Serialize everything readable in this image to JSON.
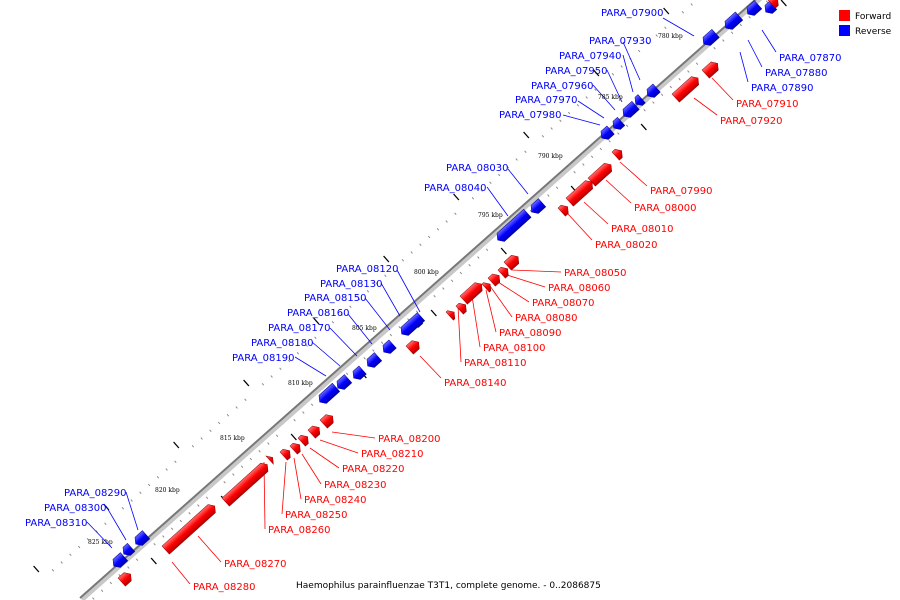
{
  "legend": {
    "forward_label": "Forward",
    "reverse_label": "Reverse",
    "forward_color": "#ff0000",
    "reverse_color": "#0000ff"
  },
  "footer_text": "Haemophilus parainfluenzae T3T1, complete genome. - 0..2086875",
  "kbp_labels": [
    "780 kbp",
    "785 kbp",
    "790 kbp",
    "795 kbp",
    "800 kbp",
    "805 kbp",
    "810 kbp",
    "815 kbp",
    "820 kbp",
    "825 kbp"
  ],
  "genes": {
    "reverse": [
      "PARA_07870",
      "PARA_07880",
      "PARA_07890",
      "PARA_07900",
      "PARA_07930",
      "PARA_07940",
      "PARA_07950",
      "PARA_07960",
      "PARA_07970",
      "PARA_07980",
      "PARA_08030",
      "PARA_08040",
      "PARA_08120",
      "PARA_08130",
      "PARA_08150",
      "PARA_08160",
      "PARA_08170",
      "PARA_08180",
      "PARA_08190",
      "PARA_08290",
      "PARA_08300",
      "PARA_08310"
    ],
    "forward": [
      "PARA_07910",
      "PARA_07920",
      "PARA_07990",
      "PARA_08000",
      "PARA_08010",
      "PARA_08020",
      "PARA_08050",
      "PARA_08060",
      "PARA_08070",
      "PARA_08080",
      "PARA_08090",
      "PARA_08100",
      "PARA_08110",
      "PARA_08140",
      "PARA_08200",
      "PARA_08210",
      "PARA_08220",
      "PARA_08230",
      "PARA_08240",
      "PARA_08250",
      "PARA_08260",
      "PARA_08270",
      "PARA_08280"
    ]
  }
}
